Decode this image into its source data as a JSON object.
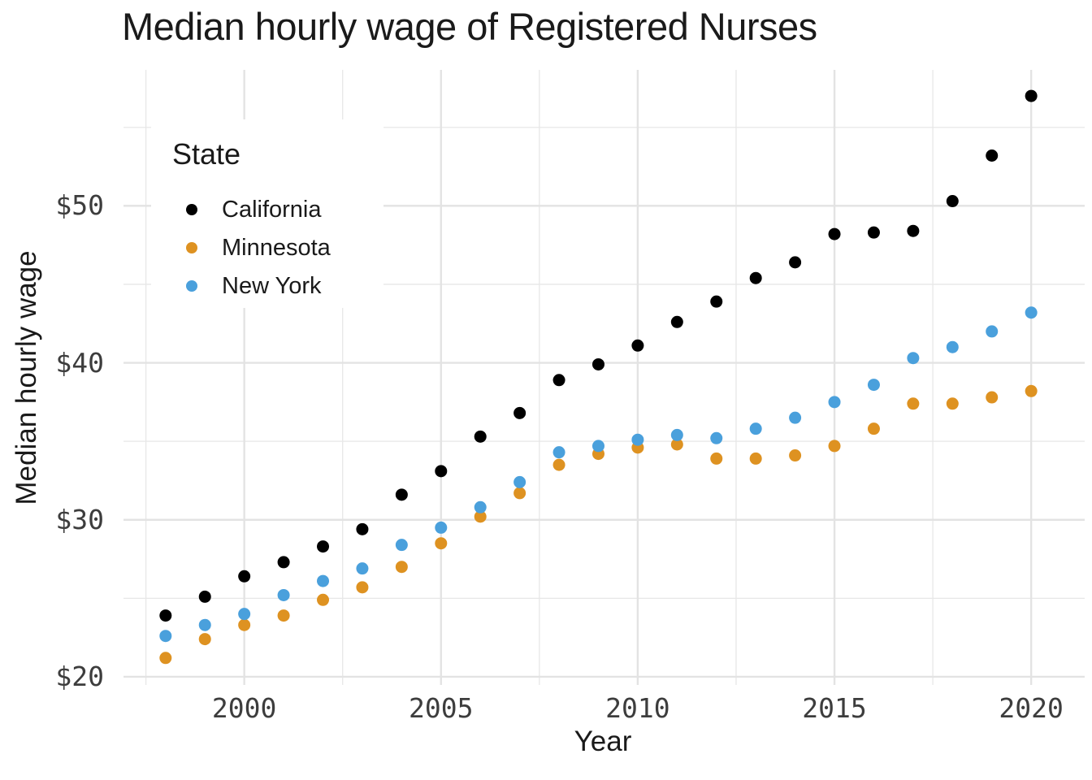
{
  "chart_data": {
    "type": "scatter",
    "title": "Median hourly wage of Registered Nurses",
    "xlabel": "Year",
    "ylabel": "Median hourly wage",
    "legend": {
      "title": "State",
      "position": "inside-top-left",
      "entries": [
        "California",
        "Minnesota",
        "New York"
      ]
    },
    "x": [
      1998,
      1999,
      2000,
      2001,
      2002,
      2003,
      2004,
      2005,
      2006,
      2007,
      2008,
      2009,
      2010,
      2011,
      2012,
      2013,
      2014,
      2015,
      2016,
      2017,
      2018,
      2019,
      2020
    ],
    "series": [
      {
        "name": "California",
        "color": "#000000",
        "values": [
          23.9,
          25.1,
          26.4,
          27.3,
          28.3,
          29.4,
          31.6,
          33.1,
          35.3,
          36.8,
          38.9,
          39.9,
          41.1,
          42.6,
          43.9,
          45.4,
          46.4,
          48.2,
          48.3,
          48.4,
          50.3,
          53.2,
          57.0
        ]
      },
      {
        "name": "Minnesota",
        "color": "#DE9221",
        "values": [
          21.2,
          22.4,
          23.3,
          23.9,
          24.9,
          25.7,
          27.0,
          28.5,
          30.2,
          31.7,
          33.5,
          34.2,
          34.6,
          34.8,
          33.9,
          33.9,
          34.1,
          34.7,
          35.8,
          37.4,
          37.4,
          37.8,
          38.2
        ]
      },
      {
        "name": "New York",
        "color": "#4AA0DC",
        "values": [
          22.6,
          23.3,
          24.0,
          25.2,
          26.1,
          26.9,
          28.4,
          29.5,
          30.8,
          32.4,
          34.3,
          34.7,
          35.1,
          35.4,
          35.2,
          35.8,
          36.5,
          37.5,
          38.6,
          40.3,
          41.0,
          42.0,
          43.2
        ]
      }
    ],
    "axes": {
      "x": {
        "ticks": [
          2000,
          2005,
          2010,
          2015,
          2020
        ],
        "tick_labels": [
          "2000",
          "2005",
          "2010",
          "2015",
          "2020"
        ],
        "minor_ticks": [
          1997.5,
          2002.5,
          2007.5,
          2012.5,
          2017.5
        ],
        "range": [
          1996.93,
          2021.36
        ]
      },
      "y": {
        "ticks": [
          20,
          30,
          40,
          50
        ],
        "tick_labels": [
          "$20",
          "$30",
          "$40",
          "$50"
        ],
        "minor_ticks": [
          25,
          35,
          45,
          55
        ],
        "range": [
          19.48,
          58.66
        ]
      }
    },
    "grid": {
      "major": true,
      "minor": true
    },
    "point_radius": 7.5,
    "colors": {
      "background": "#FFFFFF",
      "grid_major": "#E3E3E3",
      "grid_minor": "#E7E7E7",
      "tick_label": "#3D3D3D",
      "text": "#1A1A1A"
    }
  }
}
